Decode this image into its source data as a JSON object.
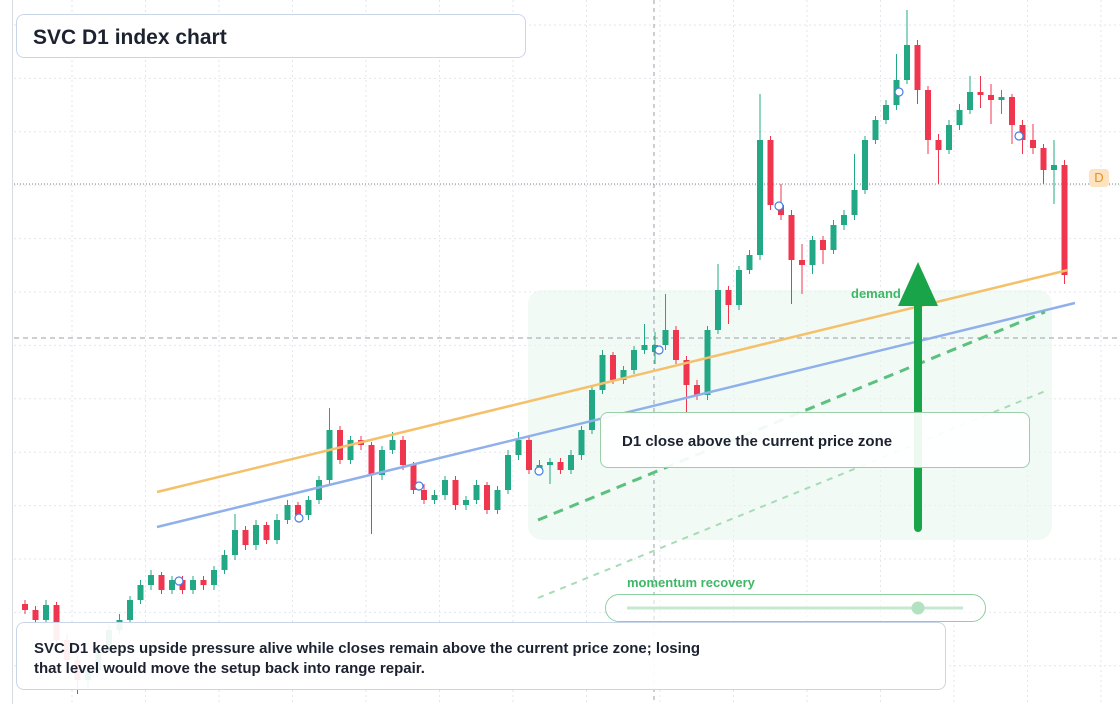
{
  "header": {
    "title": "SVC D1 index chart"
  },
  "annotations": {
    "zone_label": "demand side",
    "callout": "D1 close above the current price zone",
    "momentum": "momentum recovery",
    "badge": "D",
    "note": [
      "SVC D1 keeps upside pressure alive while closes remain above the current price zone; losing",
      "that level would move the setup back into range repair."
    ]
  },
  "chart_data": {
    "type": "candlestick",
    "ylim": [
      0,
      352
    ],
    "up_color": "#22a884",
    "down_color": "#f0364f",
    "candles": [
      [
        50,
        52,
        45,
        47
      ],
      [
        47,
        49,
        40,
        42
      ],
      [
        42,
        52,
        40,
        49.5
      ],
      [
        49.5,
        51,
        30,
        32
      ],
      [
        32,
        35,
        20,
        22
      ],
      [
        22,
        24,
        5,
        12
      ],
      [
        12,
        19,
        8,
        17
      ],
      [
        17,
        29,
        15,
        27
      ],
      [
        27,
        40,
        25,
        37
      ],
      [
        37,
        45,
        35,
        42
      ],
      [
        42,
        54,
        40,
        52
      ],
      [
        52,
        62,
        50,
        59.5
      ],
      [
        59.5,
        67,
        57,
        64.5
      ],
      [
        64.5,
        66,
        55,
        57
      ],
      [
        57,
        64,
        55,
        62
      ],
      [
        62,
        64,
        55,
        57
      ],
      [
        57,
        64,
        55,
        62
      ],
      [
        62,
        64,
        57,
        59.5
      ],
      [
        59.5,
        69,
        57,
        67
      ],
      [
        67,
        77,
        65,
        74.5
      ],
      [
        74.5,
        95,
        72,
        87
      ],
      [
        87,
        89,
        77,
        79.5
      ],
      [
        79.5,
        92,
        77,
        89.5
      ],
      [
        89.5,
        91,
        80,
        82
      ],
      [
        82,
        95,
        80,
        92
      ],
      [
        92,
        102,
        90,
        99.5
      ],
      [
        99.5,
        101,
        92,
        94.5
      ],
      [
        94.5,
        104,
        92,
        102
      ],
      [
        102,
        114,
        100,
        112
      ],
      [
        112,
        148,
        110,
        137
      ],
      [
        137,
        139,
        120,
        122
      ],
      [
        122,
        134,
        120,
        132
      ],
      [
        132,
        134,
        127,
        129.5
      ],
      [
        129.5,
        131,
        85,
        114.5
      ],
      [
        114.5,
        129,
        112,
        127
      ],
      [
        127,
        136,
        125,
        132
      ],
      [
        132,
        134,
        117,
        119.5
      ],
      [
        119.5,
        121,
        105,
        107
      ],
      [
        107,
        110,
        100,
        102
      ],
      [
        102,
        107,
        100,
        104.5
      ],
      [
        104.5,
        114,
        102,
        112
      ],
      [
        112,
        114,
        97,
        99.5
      ],
      [
        99.5,
        104,
        97,
        102
      ],
      [
        102,
        112,
        100,
        109.5
      ],
      [
        109.5,
        111,
        95,
        97
      ],
      [
        97,
        109,
        95,
        107
      ],
      [
        107,
        127,
        105,
        124.5
      ],
      [
        124.5,
        136,
        122,
        132
      ],
      [
        132,
        134,
        115,
        117
      ],
      [
        117,
        122,
        115,
        119.5
      ],
      [
        119.5,
        123,
        110,
        121
      ],
      [
        121,
        123,
        115,
        117
      ],
      [
        117,
        127,
        115,
        124.5
      ],
      [
        124.5,
        139,
        122,
        137
      ],
      [
        137,
        159,
        135,
        157
      ],
      [
        157,
        177,
        155,
        174.5
      ],
      [
        174.5,
        176,
        160,
        162
      ],
      [
        162,
        169,
        160,
        167
      ],
      [
        167,
        179,
        165,
        177
      ],
      [
        177,
        190,
        175,
        179.5
      ],
      [
        176,
        186,
        170,
        179.5
      ],
      [
        179.5,
        205,
        177,
        187
      ],
      [
        187,
        189,
        170,
        172
      ],
      [
        172,
        174,
        145,
        159.5
      ],
      [
        159.5,
        162,
        152,
        154.5
      ],
      [
        154.5,
        189,
        152,
        187
      ],
      [
        187,
        220,
        185,
        207
      ],
      [
        207,
        209,
        190,
        199.5
      ],
      [
        199.5,
        219,
        197,
        217
      ],
      [
        217,
        227,
        215,
        224.5
      ],
      [
        224.5,
        305,
        222,
        282
      ],
      [
        282,
        284,
        247,
        249.5
      ],
      [
        249.5,
        260,
        242,
        244.5
      ],
      [
        244.5,
        247,
        200,
        222
      ],
      [
        222,
        230,
        205,
        219.5
      ],
      [
        219.5,
        234,
        215,
        232
      ],
      [
        232,
        234,
        220,
        227
      ],
      [
        227,
        242,
        225,
        239.5
      ],
      [
        239.5,
        247,
        237,
        244.5
      ],
      [
        244.5,
        275,
        242,
        257
      ],
      [
        257,
        284,
        255,
        282
      ],
      [
        282,
        294,
        280,
        292
      ],
      [
        292,
        302,
        290,
        299.5
      ],
      [
        299.5,
        325,
        297,
        312
      ],
      [
        312,
        347,
        310,
        329.5
      ],
      [
        329.5,
        332,
        300,
        307
      ],
      [
        307,
        309,
        275,
        282
      ],
      [
        282,
        285,
        260,
        277
      ],
      [
        277,
        292,
        275,
        289.5
      ],
      [
        289.5,
        300,
        287,
        297
      ],
      [
        297,
        314,
        295,
        306
      ],
      [
        306,
        314,
        298,
        304.5
      ],
      [
        304.5,
        310,
        290,
        302
      ],
      [
        302,
        307,
        295,
        303.5
      ],
      [
        303.5,
        305,
        280,
        289.5
      ],
      [
        289.5,
        292,
        275,
        282
      ],
      [
        282,
        290,
        275,
        278
      ],
      [
        278,
        280,
        260,
        267
      ],
      [
        267,
        282,
        250,
        269.5
      ],
      [
        269.5,
        272,
        210,
        214.5
      ]
    ]
  }
}
